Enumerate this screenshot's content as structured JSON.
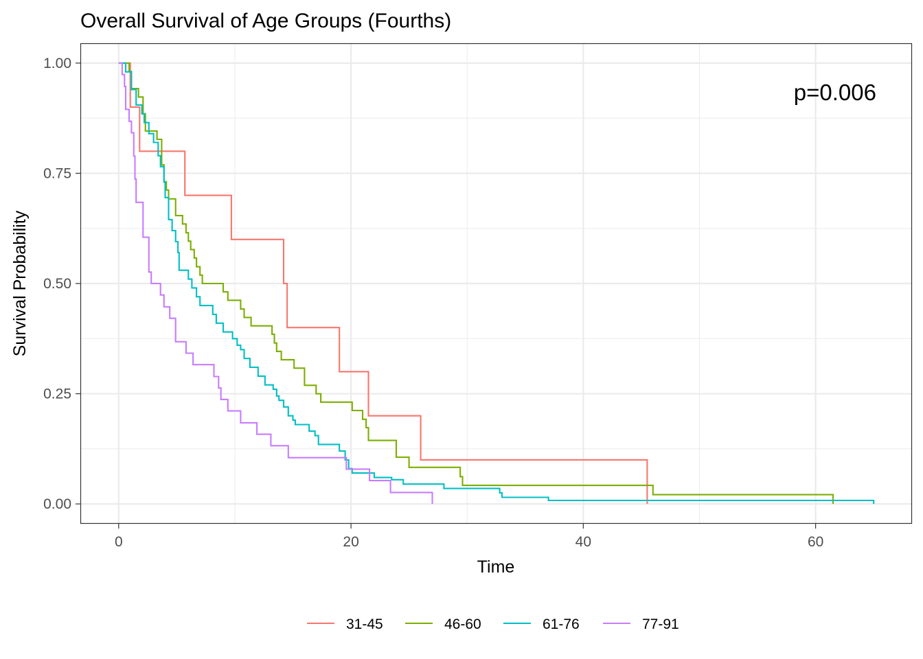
{
  "chart_data": {
    "type": "line",
    "title": "Overall Survival of Age Groups (Fourths)",
    "xlabel": "Time",
    "ylabel": "Survival Probability",
    "xlim": [
      -3.3,
      68.3
    ],
    "ylim": [
      -0.045,
      1.045
    ],
    "x_ticks": [
      0,
      20,
      40,
      60
    ],
    "x_tick_labels": [
      "0",
      "20",
      "40",
      "60"
    ],
    "y_ticks": [
      0,
      0.25,
      0.5,
      0.75,
      1.0
    ],
    "y_tick_labels": [
      "0.00",
      "0.25",
      "0.50",
      "0.75",
      "1.00"
    ],
    "grid": true,
    "legend_position": "bottom",
    "annotation": "p=0.006",
    "series": [
      {
        "name": "31-45",
        "color": "#F8766D",
        "steps": [
          [
            0,
            1.0
          ],
          [
            1.0,
            0.9
          ],
          [
            1.8,
            0.8
          ],
          [
            5.7,
            0.7
          ],
          [
            9.7,
            0.6
          ],
          [
            14.2,
            0.5
          ],
          [
            14.5,
            0.4
          ],
          [
            19.0,
            0.3
          ],
          [
            21.5,
            0.2
          ],
          [
            26.0,
            0.1
          ],
          [
            45.5,
            0.0
          ]
        ]
      },
      {
        "name": "46-60",
        "color": "#7CAE00",
        "steps": [
          [
            0,
            1.0
          ],
          [
            0.9,
            0.981
          ],
          [
            1.1,
            0.942
          ],
          [
            1.7,
            0.923
          ],
          [
            2.1,
            0.885
          ],
          [
            2.3,
            0.846
          ],
          [
            3.3,
            0.827
          ],
          [
            3.7,
            0.769
          ],
          [
            3.9,
            0.731
          ],
          [
            4.1,
            0.712
          ],
          [
            4.3,
            0.692
          ],
          [
            4.9,
            0.654
          ],
          [
            5.5,
            0.635
          ],
          [
            5.8,
            0.615
          ],
          [
            6.0,
            0.596
          ],
          [
            6.2,
            0.577
          ],
          [
            6.5,
            0.558
          ],
          [
            6.7,
            0.538
          ],
          [
            7.0,
            0.519
          ],
          [
            7.2,
            0.5
          ],
          [
            9.0,
            0.481
          ],
          [
            9.4,
            0.462
          ],
          [
            10.5,
            0.442
          ],
          [
            10.8,
            0.423
          ],
          [
            11.4,
            0.404
          ],
          [
            13.2,
            0.385
          ],
          [
            13.4,
            0.365
          ],
          [
            13.6,
            0.346
          ],
          [
            14.0,
            0.327
          ],
          [
            15.1,
            0.308
          ],
          [
            16.0,
            0.269
          ],
          [
            17.0,
            0.25
          ],
          [
            17.4,
            0.231
          ],
          [
            20.1,
            0.212
          ],
          [
            21.0,
            0.192
          ],
          [
            21.3,
            0.173
          ],
          [
            21.5,
            0.144
          ],
          [
            23.9,
            0.106
          ],
          [
            25.0,
            0.083
          ],
          [
            29.4,
            0.062
          ],
          [
            29.6,
            0.042
          ],
          [
            46.0,
            0.021
          ],
          [
            61.5,
            0.0
          ]
        ]
      },
      {
        "name": "61-76",
        "color": "#00BFC4",
        "steps": [
          [
            0,
            1.0
          ],
          [
            0.6,
            0.98
          ],
          [
            1.1,
            0.94
          ],
          [
            1.5,
            0.905
          ],
          [
            2.0,
            0.885
          ],
          [
            2.2,
            0.865
          ],
          [
            2.6,
            0.84
          ],
          [
            3.0,
            0.82
          ],
          [
            3.4,
            0.79
          ],
          [
            3.6,
            0.765
          ],
          [
            3.9,
            0.73
          ],
          [
            4.0,
            0.695
          ],
          [
            4.3,
            0.645
          ],
          [
            4.6,
            0.62
          ],
          [
            4.9,
            0.595
          ],
          [
            5.1,
            0.57
          ],
          [
            5.2,
            0.53
          ],
          [
            6.0,
            0.51
          ],
          [
            6.3,
            0.49
          ],
          [
            6.7,
            0.47
          ],
          [
            7.0,
            0.45
          ],
          [
            8.1,
            0.43
          ],
          [
            8.4,
            0.41
          ],
          [
            9.0,
            0.39
          ],
          [
            9.8,
            0.375
          ],
          [
            10.2,
            0.36
          ],
          [
            10.5,
            0.35
          ],
          [
            10.8,
            0.33
          ],
          [
            11.3,
            0.31
          ],
          [
            12.0,
            0.29
          ],
          [
            12.6,
            0.27
          ],
          [
            13.3,
            0.26
          ],
          [
            13.6,
            0.245
          ],
          [
            13.8,
            0.235
          ],
          [
            14.2,
            0.22
          ],
          [
            14.6,
            0.2
          ],
          [
            15.0,
            0.19
          ],
          [
            15.2,
            0.18
          ],
          [
            16.4,
            0.165
          ],
          [
            16.9,
            0.155
          ],
          [
            17.2,
            0.135
          ],
          [
            19.0,
            0.12
          ],
          [
            19.5,
            0.1
          ],
          [
            19.8,
            0.08
          ],
          [
            20.1,
            0.07
          ],
          [
            22.0,
            0.06
          ],
          [
            23.5,
            0.055
          ],
          [
            24.5,
            0.045
          ],
          [
            28.0,
            0.035
          ],
          [
            32.8,
            0.025
          ],
          [
            33.0,
            0.015
          ],
          [
            37.0,
            0.008
          ],
          [
            65.0,
            0.0
          ]
        ]
      },
      {
        "name": "77-91",
        "color": "#C77CFF",
        "steps": [
          [
            0,
            1.0
          ],
          [
            0.3,
            0.974
          ],
          [
            0.5,
            0.947
          ],
          [
            0.6,
            0.895
          ],
          [
            0.9,
            0.868
          ],
          [
            1.1,
            0.842
          ],
          [
            1.3,
            0.789
          ],
          [
            1.4,
            0.737
          ],
          [
            1.5,
            0.684
          ],
          [
            2.1,
            0.605
          ],
          [
            2.6,
            0.526
          ],
          [
            2.8,
            0.5
          ],
          [
            3.6,
            0.474
          ],
          [
            3.9,
            0.447
          ],
          [
            4.4,
            0.421
          ],
          [
            4.9,
            0.368
          ],
          [
            5.8,
            0.342
          ],
          [
            6.4,
            0.316
          ],
          [
            8.2,
            0.289
          ],
          [
            8.6,
            0.263
          ],
          [
            8.8,
            0.237
          ],
          [
            9.4,
            0.211
          ],
          [
            10.5,
            0.184
          ],
          [
            11.9,
            0.158
          ],
          [
            13.1,
            0.132
          ],
          [
            14.6,
            0.105
          ],
          [
            19.6,
            0.079
          ],
          [
            21.6,
            0.053
          ],
          [
            23.4,
            0.026
          ],
          [
            27.0,
            0.0
          ]
        ]
      }
    ]
  }
}
